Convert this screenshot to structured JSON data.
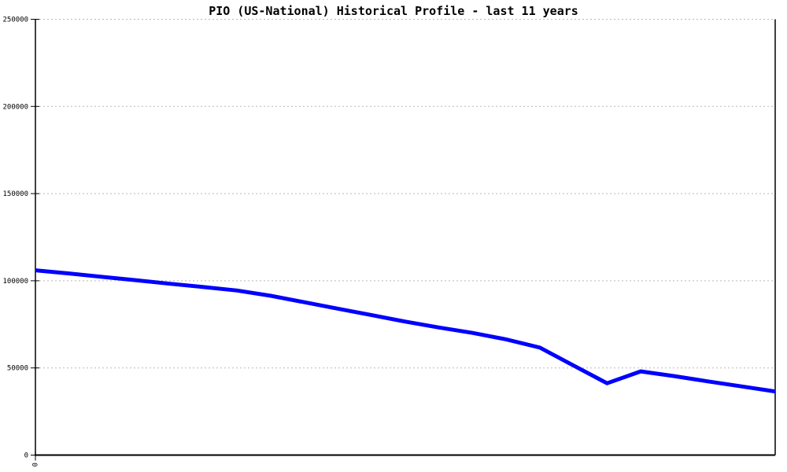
{
  "title": "PIO (US-National) Historical Profile - last 11 years",
  "colors": {
    "background": "#ffffff",
    "line": "#0000ff",
    "axis": "#000000",
    "grid": "#b9b9b9",
    "text": "#000000"
  },
  "chart_data": {
    "type": "line",
    "title": "PIO (US-National) Historical Profile - last 11 years",
    "xlabel": "",
    "ylabel": "",
    "ylim": [
      0,
      250000
    ],
    "yticks": [
      0,
      50000,
      100000,
      150000,
      200000,
      250000
    ],
    "ytick_labels": [
      "0",
      "50000",
      "100000",
      "150000",
      "200000",
      "250000"
    ],
    "grid": "horizontal-dotted",
    "legend_position": "none",
    "x_axis": {
      "visible_tick_count": 1,
      "first_tick_label_visible_fragment": "0",
      "label_rotated_90": true
    },
    "x_description": "23 evenly spaced points spanning the full x range (11 years, semi-annual); x tick labels not visible except one clipped rotated character",
    "series": [
      {
        "name": "PIO (US-National)",
        "color": "#0000ff",
        "values": [
          106000,
          104200,
          102200,
          100300,
          98300,
          96400,
          94400,
          91400,
          87700,
          84000,
          80300,
          76600,
          73200,
          70100,
          66400,
          61700,
          51400,
          41200,
          48000,
          45300,
          42300,
          39400,
          36500
        ]
      }
    ]
  }
}
